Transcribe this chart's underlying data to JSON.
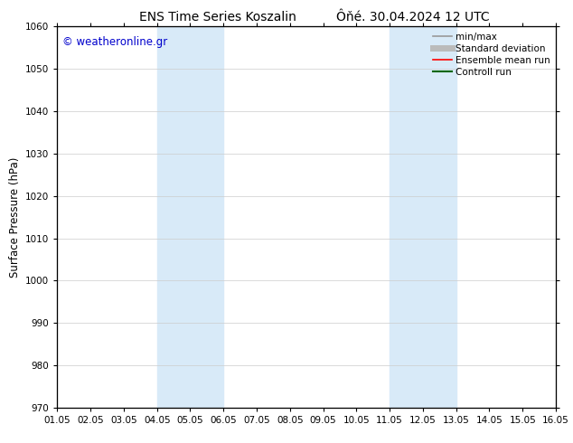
{
  "title_left": "ENS Time Series Koszalin",
  "title_right": "Ôňé. 30.04.2024 12 UTC",
  "ylabel": "Surface Pressure (hPa)",
  "ylim": [
    970,
    1060
  ],
  "yticks": [
    970,
    980,
    990,
    1000,
    1010,
    1020,
    1030,
    1040,
    1050,
    1060
  ],
  "xlim": [
    0,
    15
  ],
  "xtick_labels": [
    "01.05",
    "02.05",
    "03.05",
    "04.05",
    "05.05",
    "06.05",
    "07.05",
    "08.05",
    "09.05",
    "10.05",
    "11.05",
    "12.05",
    "13.05",
    "14.05",
    "15.05",
    "16.05"
  ],
  "shaded_bands": [
    {
      "xmin": 3,
      "xmax": 5
    },
    {
      "xmin": 10,
      "xmax": 12
    }
  ],
  "shade_color": "#d8eaf8",
  "watermark": "© weatheronline.gr",
  "watermark_color": "#0000cc",
  "legend_items": [
    {
      "label": "min/max",
      "color": "#999999",
      "lw": 1.2
    },
    {
      "label": "Standard deviation",
      "color": "#bbbbbb",
      "lw": 5
    },
    {
      "label": "Ensemble mean run",
      "color": "#ff0000",
      "lw": 1.2
    },
    {
      "label": "Controll run",
      "color": "#006600",
      "lw": 1.5
    }
  ],
  "bg_color": "#ffffff",
  "grid_color": "#cccccc",
  "title_fontsize": 10,
  "tick_fontsize": 7.5,
  "ylabel_fontsize": 8.5,
  "legend_fontsize": 7.5,
  "watermark_fontsize": 8.5
}
